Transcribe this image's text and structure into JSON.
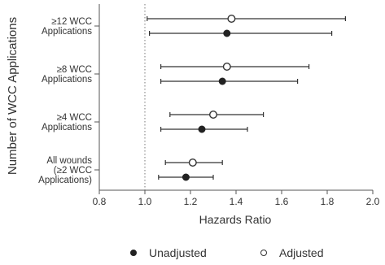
{
  "chart_data": {
    "type": "scatter",
    "subtype": "forest-plot",
    "title": "",
    "xlabel": "Hazards Ratio",
    "ylabel": "Number of WCC Applications",
    "xlim": [
      0.8,
      2.0
    ],
    "xticks": [
      "0.8",
      "1.0",
      "1.2",
      "1.4",
      "1.6",
      "1.8",
      "2.0"
    ],
    "xtick_values": [
      0.8,
      1.0,
      1.2,
      1.4,
      1.6,
      1.8,
      2.0
    ],
    "reference_line": 1.0,
    "grid": false,
    "legend_position": "bottom",
    "categories": [
      {
        "lines": [
          "≥12 WCC",
          "Applications"
        ]
      },
      {
        "lines": [
          "≥8 WCC",
          "Applications"
        ]
      },
      {
        "lines": [
          "≥4 WCC",
          "Applications"
        ]
      },
      {
        "lines": [
          "All wounds",
          "(≥2 WCC",
          "Applications)"
        ]
      }
    ],
    "series": [
      {
        "name": "Adjusted",
        "marker": "open",
        "points": [
          {
            "estimate": 1.38,
            "lower": 1.01,
            "upper": 1.88
          },
          {
            "estimate": 1.36,
            "lower": 1.07,
            "upper": 1.72
          },
          {
            "estimate": 1.3,
            "lower": 1.11,
            "upper": 1.52
          },
          {
            "estimate": 1.21,
            "lower": 1.09,
            "upper": 1.34
          }
        ]
      },
      {
        "name": "Unadjusted",
        "marker": "filled",
        "points": [
          {
            "estimate": 1.36,
            "lower": 1.02,
            "upper": 1.82
          },
          {
            "estimate": 1.34,
            "lower": 1.07,
            "upper": 1.67
          },
          {
            "estimate": 1.25,
            "lower": 1.07,
            "upper": 1.45
          },
          {
            "estimate": 1.18,
            "lower": 1.06,
            "upper": 1.3
          }
        ]
      }
    ],
    "legend": [
      {
        "label": "Unadjusted",
        "marker": "filled"
      },
      {
        "label": "Adjusted",
        "marker": "open"
      }
    ],
    "colors": {
      "ink": "#333333",
      "filled": "#222222",
      "axis": "#555555"
    }
  }
}
